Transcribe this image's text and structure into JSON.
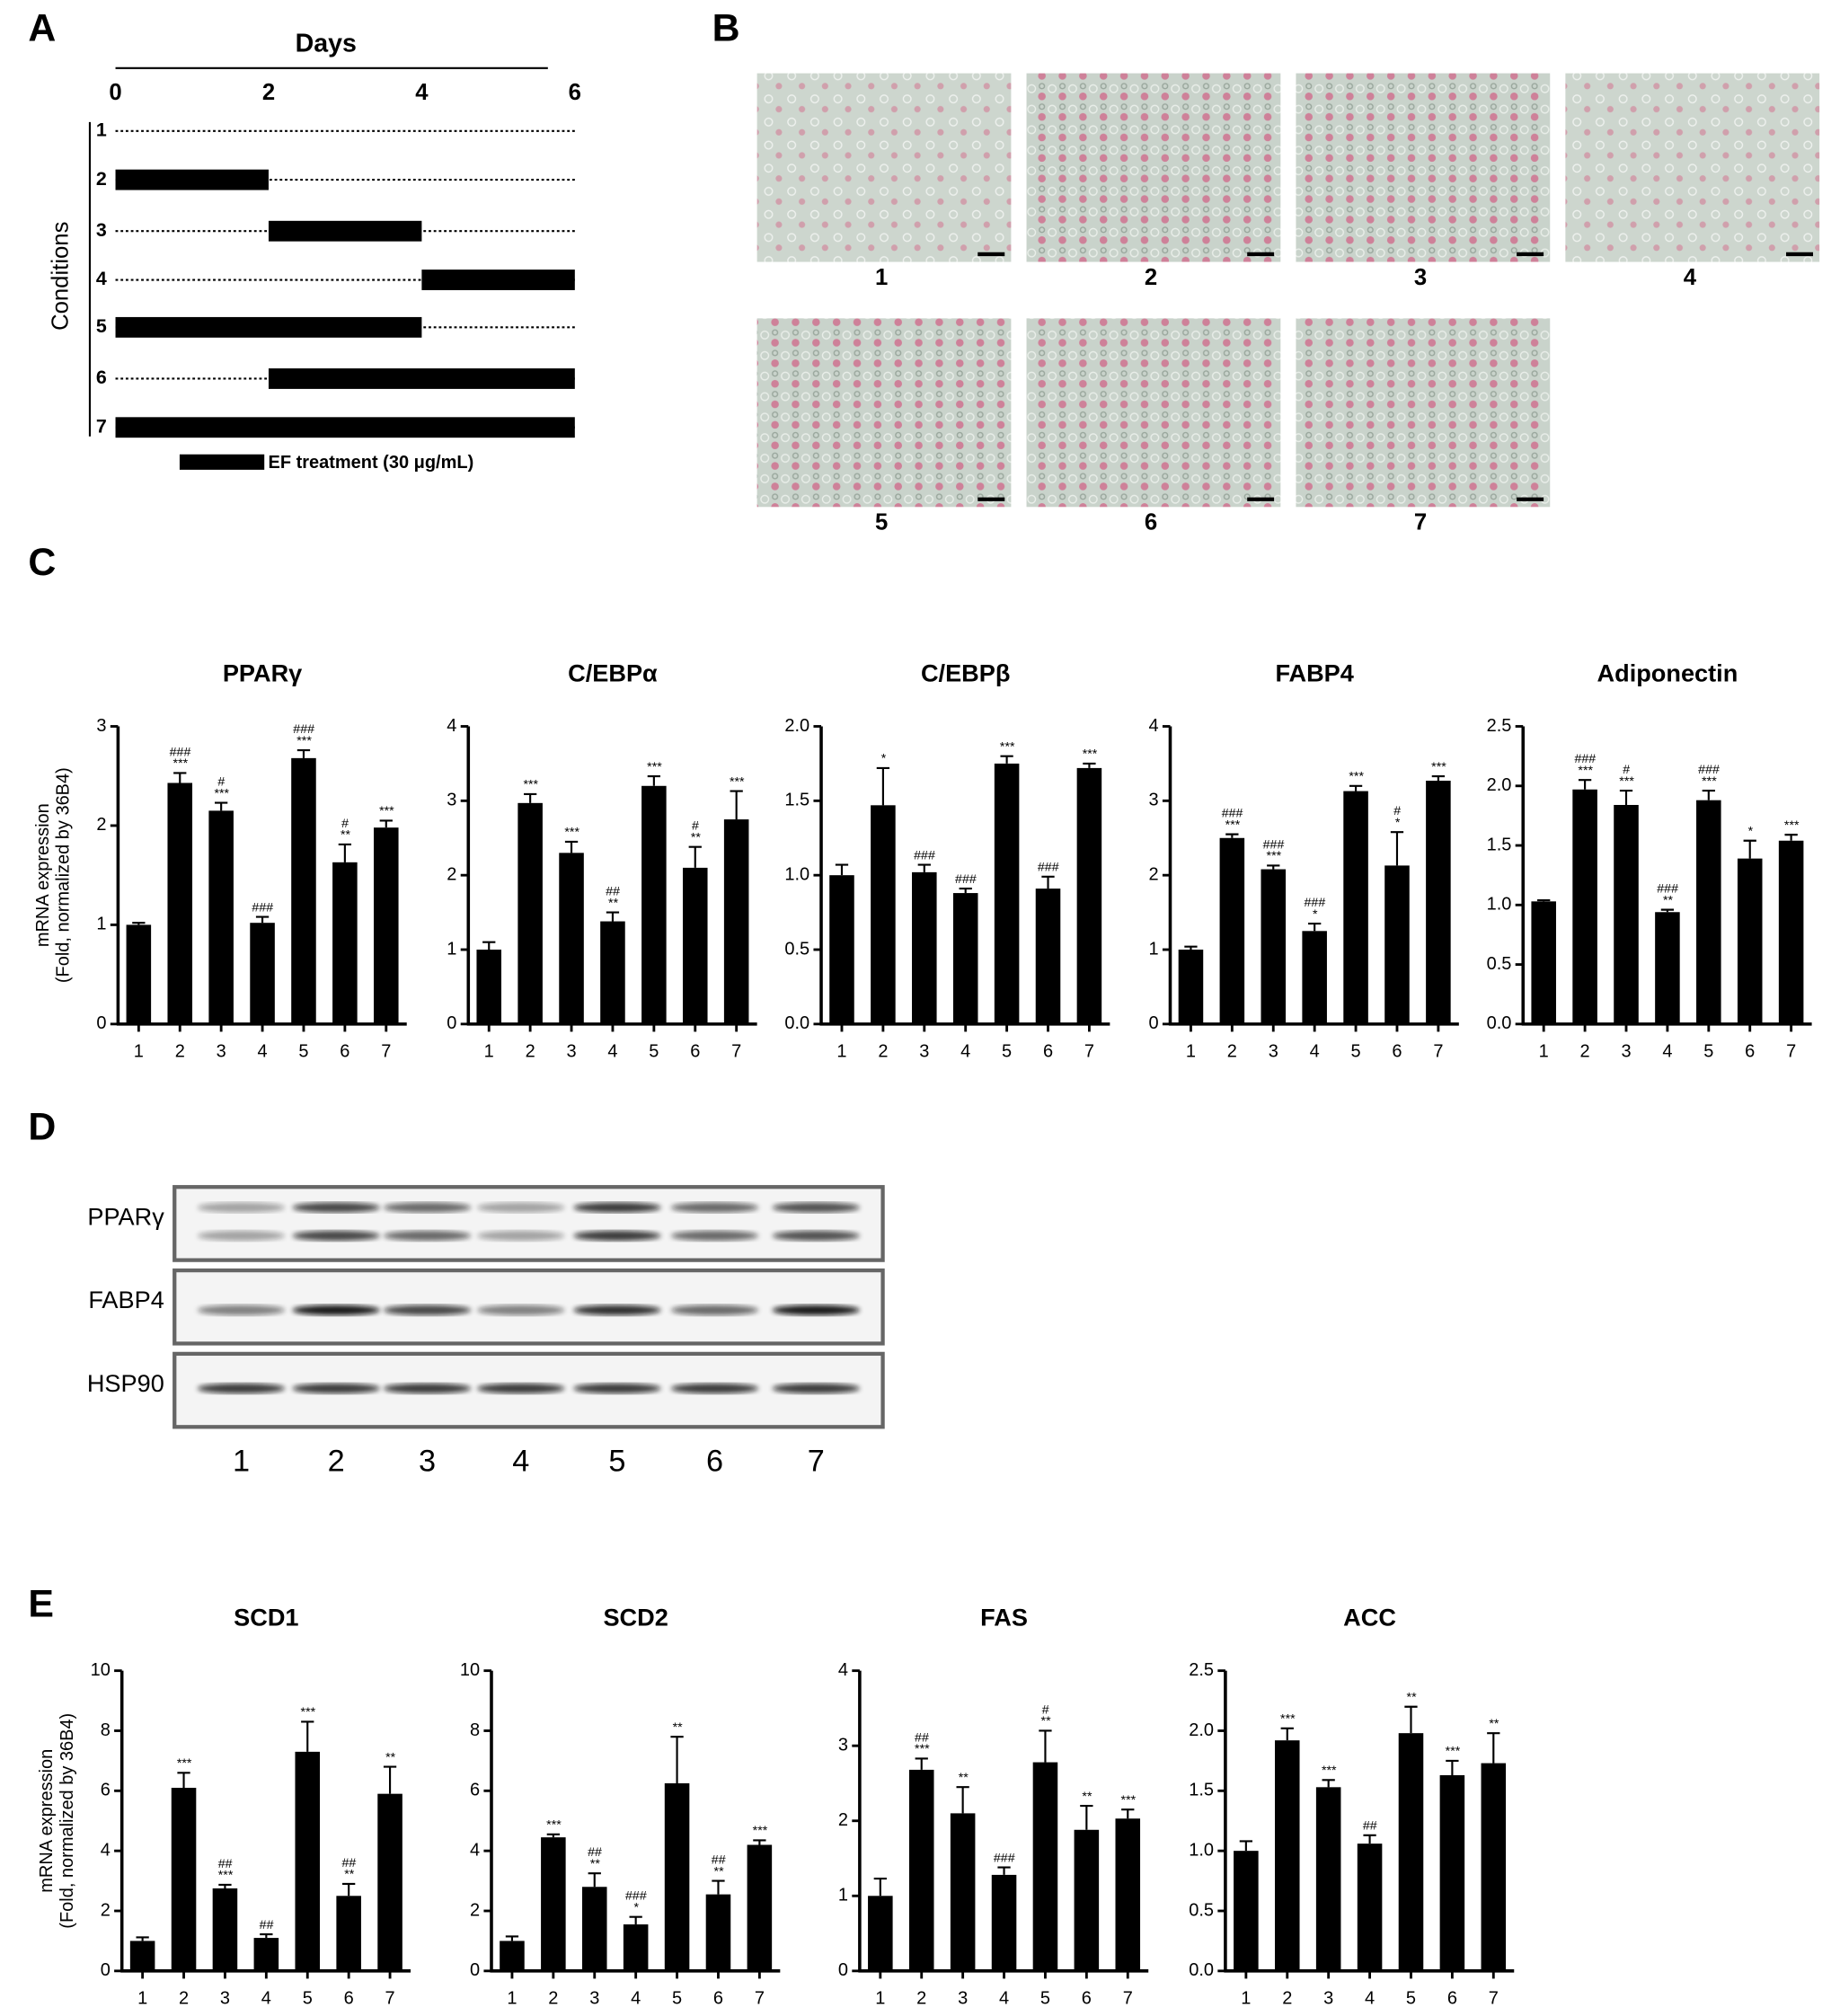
{
  "panel_labels": [
    "A",
    "B",
    "C",
    "D",
    "E"
  ],
  "timeline": {
    "axis_title": "Days",
    "xlim": [
      0,
      6
    ],
    "xticks": [
      0,
      2,
      4,
      6
    ],
    "y_title": "Conditions",
    "conditions": [
      "1",
      "2",
      "3",
      "4",
      "5",
      "6",
      "7"
    ],
    "treatments": [
      null,
      [
        0,
        2
      ],
      [
        2,
        4
      ],
      [
        4,
        6
      ],
      [
        0,
        4
      ],
      [
        2,
        6
      ],
      [
        0,
        6
      ]
    ],
    "legend": "EF treatment (30 μg/mL)"
  },
  "micrographs": {
    "labels": [
      "1",
      "2",
      "3",
      "4",
      "5",
      "6",
      "7"
    ]
  },
  "blot": {
    "rows": [
      "PPARγ",
      "FABP4",
      "HSP90"
    ],
    "lanes": [
      "1",
      "2",
      "3",
      "4",
      "5",
      "6",
      "7"
    ]
  },
  "chart_data": [
    {
      "type": "bar",
      "title": "PPARγ",
      "ylabel": [
        "mRNA expression",
        "(Fold, normalized by 36B4)"
      ],
      "color": "#000000",
      "categories": [
        "1",
        "2",
        "3",
        "4",
        "5",
        "6",
        "7"
      ],
      "values": [
        1.0,
        2.43,
        2.15,
        1.02,
        2.68,
        1.63,
        1.98
      ],
      "errors": [
        0.02,
        0.1,
        0.08,
        0.06,
        0.08,
        0.18,
        0.07
      ],
      "annotations": [
        [],
        [
          "###",
          "***"
        ],
        [
          "#",
          "***"
        ],
        [
          "###"
        ],
        [
          "###",
          "***"
        ],
        [
          "#",
          "**"
        ],
        [
          "***"
        ]
      ],
      "ylim": [
        0,
        3
      ],
      "yticks": [
        0,
        1,
        2,
        3
      ]
    },
    {
      "type": "bar",
      "title": "C/EBPα",
      "color": "#000000",
      "categories": [
        "1",
        "2",
        "3",
        "4",
        "5",
        "6",
        "7"
      ],
      "values": [
        1.0,
        2.97,
        2.3,
        1.38,
        3.2,
        2.1,
        2.75
      ],
      "errors": [
        0.1,
        0.12,
        0.15,
        0.12,
        0.13,
        0.28,
        0.38
      ],
      "annotations": [
        [],
        [
          "***"
        ],
        [
          "***"
        ],
        [
          "##",
          "**"
        ],
        [
          "***"
        ],
        [
          "#",
          "**"
        ],
        [
          "***"
        ]
      ],
      "ylim": [
        0,
        4
      ],
      "yticks": [
        0,
        1,
        2,
        3,
        4
      ]
    },
    {
      "type": "bar",
      "title": "C/EBPβ",
      "color": "#000000",
      "categories": [
        "1",
        "2",
        "3",
        "4",
        "5",
        "6",
        "7"
      ],
      "values": [
        1.0,
        1.47,
        1.02,
        0.88,
        1.75,
        0.91,
        1.72
      ],
      "errors": [
        0.07,
        0.25,
        0.05,
        0.03,
        0.05,
        0.08,
        0.03
      ],
      "annotations": [
        [],
        [
          "*"
        ],
        [
          "###"
        ],
        [
          "###"
        ],
        [
          "***"
        ],
        [
          "###"
        ],
        [
          "***"
        ]
      ],
      "ylim": [
        0,
        2
      ],
      "yticks": [
        {
          "value": 0,
          "label": "0.0"
        },
        {
          "value": 0.5,
          "label": "0.5"
        },
        {
          "value": 1,
          "label": "1.0"
        },
        {
          "value": 1.5,
          "label": "1.5"
        },
        {
          "value": 2,
          "label": "2.0"
        }
      ]
    },
    {
      "type": "bar",
      "title": "FABP4",
      "color": "#000000",
      "categories": [
        "1",
        "2",
        "3",
        "4",
        "5",
        "6",
        "7"
      ],
      "values": [
        1.0,
        2.5,
        2.08,
        1.25,
        3.13,
        2.13,
        3.27
      ],
      "errors": [
        0.04,
        0.05,
        0.05,
        0.1,
        0.07,
        0.45,
        0.06
      ],
      "annotations": [
        [],
        [
          "###",
          "***"
        ],
        [
          "###",
          "***"
        ],
        [
          "###",
          "*"
        ],
        [
          "***"
        ],
        [
          "#",
          "*"
        ],
        [
          "***"
        ]
      ],
      "ylim": [
        0,
        4
      ],
      "yticks": [
        0,
        1,
        2,
        3,
        4
      ]
    },
    {
      "type": "bar",
      "title": "Adiponectin",
      "color": "#000000",
      "categories": [
        "1",
        "2",
        "3",
        "4",
        "5",
        "6",
        "7"
      ],
      "values": [
        1.03,
        1.97,
        1.84,
        0.94,
        1.88,
        1.39,
        1.54
      ],
      "errors": [
        0.01,
        0.08,
        0.12,
        0.02,
        0.08,
        0.15,
        0.05
      ],
      "annotations": [
        [],
        [
          "###",
          "***"
        ],
        [
          "#",
          "***"
        ],
        [
          "###",
          "**"
        ],
        [
          "###",
          "***"
        ],
        [
          "*"
        ],
        [
          "***"
        ]
      ],
      "ylim": [
        0,
        2.5
      ],
      "yticks": [
        {
          "value": 0,
          "label": "0.0"
        },
        {
          "value": 0.5,
          "label": "0.5"
        },
        {
          "value": 1,
          "label": "1.0"
        },
        {
          "value": 1.5,
          "label": "1.5"
        },
        {
          "value": 2,
          "label": "2.0"
        },
        {
          "value": 2.5,
          "label": "2.5"
        }
      ]
    },
    {
      "type": "bar",
      "title": "SCD1",
      "ylabel": [
        "mRNA expression",
        "(Fold, normalized by 36B4)"
      ],
      "color": "#000000",
      "categories": [
        "1",
        "2",
        "3",
        "4",
        "5",
        "6",
        "7"
      ],
      "values": [
        1.0,
        6.1,
        2.75,
        1.1,
        7.3,
        2.5,
        5.9
      ],
      "errors": [
        0.12,
        0.5,
        0.12,
        0.12,
        1.0,
        0.4,
        0.9
      ],
      "annotations": [
        [],
        [
          "***"
        ],
        [
          "##",
          "***"
        ],
        [
          "##"
        ],
        [
          "***"
        ],
        [
          "##",
          "**"
        ],
        [
          "**"
        ]
      ],
      "ylim": [
        0,
        10
      ],
      "yticks": [
        0,
        2,
        4,
        6,
        8,
        10
      ]
    },
    {
      "type": "bar",
      "title": "SCD2",
      "color": "#000000",
      "categories": [
        "1",
        "2",
        "3",
        "4",
        "5",
        "6",
        "7"
      ],
      "values": [
        1.0,
        4.45,
        2.8,
        1.55,
        6.25,
        2.55,
        4.2
      ],
      "errors": [
        0.15,
        0.1,
        0.45,
        0.25,
        1.55,
        0.45,
        0.15
      ],
      "annotations": [
        [],
        [
          "***"
        ],
        [
          "##",
          "**"
        ],
        [
          "###",
          "*"
        ],
        [
          "**"
        ],
        [
          "##",
          "**"
        ],
        [
          "***"
        ]
      ],
      "ylim": [
        0,
        10
      ],
      "yticks": [
        0,
        2,
        4,
        6,
        8,
        10
      ]
    },
    {
      "type": "bar",
      "title": "FAS",
      "color": "#000000",
      "categories": [
        "1",
        "2",
        "3",
        "4",
        "5",
        "6",
        "7"
      ],
      "values": [
        1.0,
        2.68,
        2.1,
        1.28,
        2.78,
        1.88,
        2.03
      ],
      "errors": [
        0.23,
        0.15,
        0.35,
        0.1,
        0.42,
        0.32,
        0.12
      ],
      "annotations": [
        [],
        [
          "##",
          "***"
        ],
        [
          "**"
        ],
        [
          "###"
        ],
        [
          "#",
          "**"
        ],
        [
          "**"
        ],
        [
          "***"
        ]
      ],
      "ylim": [
        0,
        4
      ],
      "yticks": [
        0,
        1,
        2,
        3,
        4
      ]
    },
    {
      "type": "bar",
      "title": "ACC",
      "color": "#000000",
      "categories": [
        "1",
        "2",
        "3",
        "4",
        "5",
        "6",
        "7"
      ],
      "values": [
        1.0,
        1.92,
        1.53,
        1.06,
        1.98,
        1.63,
        1.73
      ],
      "errors": [
        0.08,
        0.1,
        0.06,
        0.07,
        0.22,
        0.12,
        0.25
      ],
      "annotations": [
        [],
        [
          "***"
        ],
        [
          "***"
        ],
        [
          "##"
        ],
        [
          "**"
        ],
        [
          "***"
        ],
        [
          "**"
        ]
      ],
      "ylim": [
        0,
        2.5
      ],
      "yticks": [
        {
          "value": 0,
          "label": "0.0"
        },
        {
          "value": 0.5,
          "label": "0.5"
        },
        {
          "value": 1,
          "label": "1.0"
        },
        {
          "value": 1.5,
          "label": "1.5"
        },
        {
          "value": 2,
          "label": "2.0"
        },
        {
          "value": 2.5,
          "label": "2.5"
        }
      ]
    }
  ]
}
